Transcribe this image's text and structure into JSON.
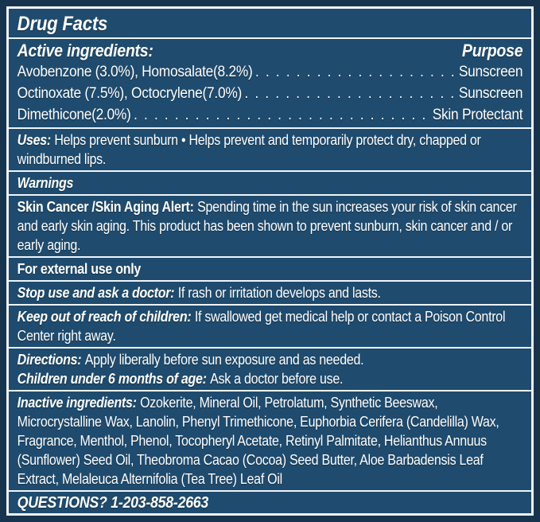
{
  "colors": {
    "frame_bg": "#17344f",
    "panel_bg": "#1f4b6e",
    "divider": "#eef5f9",
    "text": "#ffffff"
  },
  "title": "Drug Facts",
  "active": {
    "heading": "Active ingredients:",
    "purpose_heading": "Purpose",
    "dot_leader": ". . . . . . . . . . . . . . . . . . . . . . . . . . . . . . . . . . . . . . . . . . . . . . . . . . . . . . . . . . . .",
    "rows": [
      {
        "name": "Avobenzone (3.0%), Homosalate(8.2%)",
        "purpose": "Sunscreen"
      },
      {
        "name": "Octinoxate (7.5%), Octocrylene(7.0%)",
        "purpose": "Sunscreen"
      },
      {
        "name": "Dimethicone(2.0%)",
        "purpose": "Skin Protectant"
      }
    ]
  },
  "uses": {
    "label": "Uses:",
    "text": "Helps prevent sunburn • Helps prevent and temporarily protect dry, chapped or windburned lips."
  },
  "warnings": {
    "heading": "Warnings"
  },
  "alert": {
    "label": "Skin Cancer /Skin Aging Alert:",
    "text": "Spending time in the sun increases your risk of skin cancer and early skin aging. This product has been shown to prevent sunburn, skin cancer and / or early aging."
  },
  "external_use": {
    "text": "For external use only"
  },
  "stop_use": {
    "label": "Stop use and ask a doctor:",
    "text": "If rash or irritation develops and lasts."
  },
  "keep_out": {
    "label": "Keep out of reach of children:",
    "text": "If swallowed get medical help or contact a Poison Control Center right away."
  },
  "directions": {
    "label": "Directions:",
    "text": "Apply liberally before sun exposure and as needed."
  },
  "children": {
    "label": "Children under 6 months of age:",
    "text": "Ask a doctor before use."
  },
  "inactive": {
    "label": "Inactive ingredients:",
    "text": "Ozokerite, Mineral Oil, Petrolatum, Synthetic Beeswax, Microcrystalline Wax, Lanolin, Phenyl Trimethicone, Euphorbia Cerifera (Candelilla) Wax, Fragrance, Menthol, Phenol, Tocopheryl Acetate, Retinyl Palmitate, Helianthus Annuus (Sunflower) Seed Oil, Theobroma Cacao (Cocoa) Seed Butter, Aloe Barbadensis Leaf Extract, Melaleuca Alternifolia (Tea Tree) Leaf Oil"
  },
  "questions": {
    "text": "QUESTIONS? 1-203-858-2663"
  }
}
